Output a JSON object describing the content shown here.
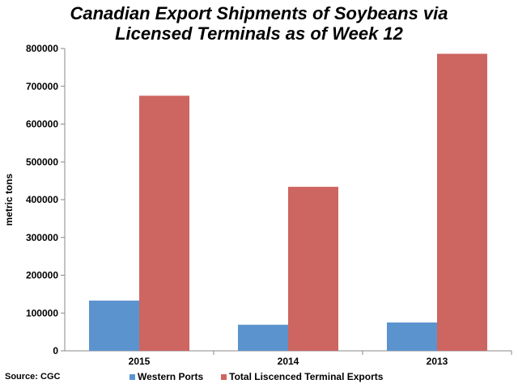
{
  "chart_data": {
    "type": "bar",
    "title_lines": [
      "Canadian Export Shipments of Soybeans via",
      "Licensed Terminals as of Week 12"
    ],
    "categories": [
      "2015",
      "2014",
      "2013"
    ],
    "series": [
      {
        "name": "Western Ports",
        "values": [
          133000,
          69000,
          75000
        ],
        "color": "#5b93cf"
      },
      {
        "name": "Total Liscenced Terminal Exports",
        "values": [
          675000,
          434000,
          786000
        ],
        "color": "#cd6561"
      }
    ],
    "xlabel": "",
    "ylabel": "metric tons",
    "ylim": [
      0,
      800000
    ],
    "yticks": [
      0,
      100000,
      200000,
      300000,
      400000,
      500000,
      600000,
      700000,
      800000
    ],
    "grid": false,
    "legend_position": "bottom"
  },
  "source": "Source: CGC"
}
